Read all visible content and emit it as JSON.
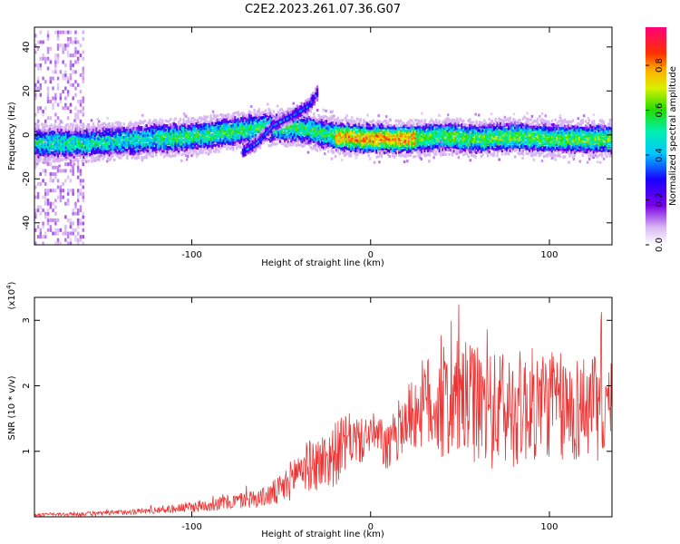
{
  "figure": {
    "title": "C2E2.2023.261.07.36.G07"
  },
  "chart_data": [
    {
      "type": "heatmap",
      "xlabel": "Height of straight line (km)",
      "ylabel": "Frequency (Hz)",
      "xlim": [
        -188,
        135
      ],
      "ylim": [
        -50,
        49
      ],
      "xticks": [
        -100,
        0,
        100
      ],
      "xtick_labels": [
        "-100",
        "0",
        "100"
      ],
      "yticks": [
        -40,
        -20,
        0,
        20,
        40
      ],
      "ytick_labels": [
        "-40",
        "-20",
        "0",
        "20",
        "40"
      ],
      "colorbar": {
        "label": "Normalized spectral amplitude",
        "range": [
          0,
          0.97
        ],
        "ticks": [
          0.0,
          0.2,
          0.4,
          0.6,
          0.8
        ],
        "tick_labels": [
          "0.0",
          "0.2",
          "0.4",
          "0.6",
          "0.8"
        ],
        "colormap": "rainbow (white-violet-blue-cyan-green-yellow-orange-red-magenta)"
      },
      "ridge": {
        "description": "dominant frequency track",
        "points": [
          [
            -188,
            -3
          ],
          [
            -160,
            -3
          ],
          [
            -140,
            -2
          ],
          [
            -120,
            -1
          ],
          [
            -100,
            0
          ],
          [
            -80,
            2
          ],
          [
            -60,
            4
          ],
          [
            -40,
            4
          ],
          [
            -30,
            2
          ],
          [
            -20,
            0
          ],
          [
            0,
            -1
          ],
          [
            20,
            -1
          ],
          [
            40,
            0
          ],
          [
            60,
            -1
          ],
          [
            80,
            0
          ],
          [
            100,
            -1
          ],
          [
            120,
            -1
          ],
          [
            135,
            -1
          ]
        ]
      },
      "side_branch": {
        "points": [
          [
            -72,
            -7
          ],
          [
            -64,
            -3
          ],
          [
            -55,
            5
          ],
          [
            -45,
            9
          ],
          [
            -35,
            14
          ],
          [
            -30,
            20
          ]
        ]
      },
      "grid": false
    },
    {
      "type": "line",
      "xlabel": "Height of straight line (km)",
      "ylabel": "SNR (10 * v/v)",
      "y_multiplier_label": "(x10",
      "y_multiplier_exp": "4",
      "y_multiplier_close": ")",
      "xlim": [
        -188,
        135
      ],
      "ylim": [
        0,
        3.35
      ],
      "xticks": [
        -100,
        0,
        100
      ],
      "xtick_labels": [
        "-100",
        "0",
        "100"
      ],
      "yticks": [
        1,
        2,
        3
      ],
      "ytick_labels": [
        "1",
        "2",
        "3"
      ],
      "series": [
        {
          "color": "#ee3333",
          "envelope": [
            [
              -188,
              0.03
            ],
            [
              -150,
              0.05
            ],
            [
              -120,
              0.1
            ],
            [
              -100,
              0.15
            ],
            [
              -80,
              0.22
            ],
            [
              -60,
              0.3
            ],
            [
              -50,
              0.4
            ],
            [
              -45,
              0.55
            ],
            [
              -40,
              0.75
            ],
            [
              -30,
              0.8
            ],
            [
              -20,
              0.95
            ],
            [
              -15,
              1.1
            ],
            [
              -10,
              1.2
            ],
            [
              -5,
              1.15
            ],
            [
              0,
              1.3
            ],
            [
              5,
              1.2
            ],
            [
              10,
              1.0
            ],
            [
              15,
              1.3
            ],
            [
              20,
              1.5
            ],
            [
              25,
              1.6
            ],
            [
              30,
              1.75
            ],
            [
              40,
              1.7
            ],
            [
              50,
              1.8
            ],
            [
              60,
              1.7
            ],
            [
              70,
              1.6
            ],
            [
              80,
              1.65
            ],
            [
              90,
              1.7
            ],
            [
              100,
              1.75
            ],
            [
              110,
              1.6
            ],
            [
              120,
              1.7
            ],
            [
              135,
              1.6
            ]
          ],
          "variability": [
            [
              -188,
              0.02
            ],
            [
              -120,
              0.05
            ],
            [
              -60,
              0.15
            ],
            [
              -40,
              0.35
            ],
            [
              -20,
              0.5
            ],
            [
              0,
              0.3
            ],
            [
              20,
              0.5
            ],
            [
              40,
              0.9
            ],
            [
              80,
              0.9
            ],
            [
              135,
              0.8
            ]
          ]
        }
      ],
      "grid": false
    }
  ]
}
